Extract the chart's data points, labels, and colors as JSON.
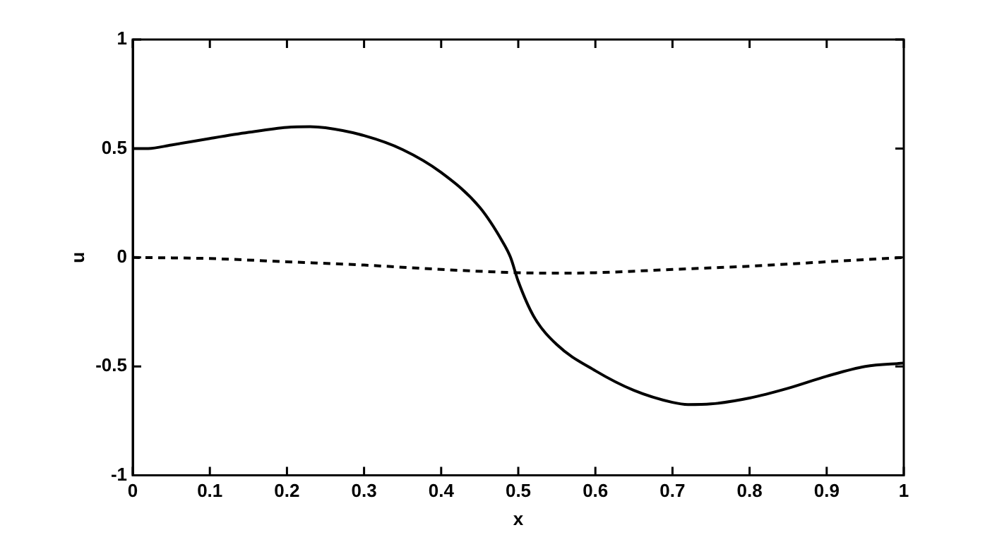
{
  "chart_data": {
    "type": "line",
    "xlabel": "x",
    "ylabel": "u",
    "xlim": [
      0,
      1
    ],
    "xticks": [
      0,
      0.1,
      0.2,
      0.3,
      0.4,
      0.5,
      0.6,
      0.7,
      0.8,
      0.9,
      1
    ],
    "ylim": [
      -1,
      1
    ],
    "yticks": [
      -1,
      -0.5,
      0,
      0.5,
      1
    ],
    "grid": false,
    "legend": false,
    "marker": "none",
    "series": [
      {
        "color": "#000000",
        "line_style": "solid",
        "x": [
          0,
          0.02,
          0.05,
          0.1,
          0.15,
          0.2,
          0.23,
          0.25,
          0.3,
          0.35,
          0.4,
          0.45,
          0.48,
          0.49,
          0.5,
          0.52,
          0.55,
          0.6,
          0.65,
          0.7,
          0.72,
          0.75,
          0.8,
          0.85,
          0.9,
          0.95,
          1
        ],
        "values": [
          0.5,
          0.5,
          0.516,
          0.546,
          0.574,
          0.597,
          0.6,
          0.595,
          0.559,
          0.495,
          0.39,
          0.23,
          0.07,
          0,
          -0.11,
          -0.27,
          -0.4,
          -0.52,
          -0.61,
          -0.665,
          -0.675,
          -0.672,
          -0.645,
          -0.6,
          -0.545,
          -0.5,
          -0.485
        ]
      },
      {
        "color": "#000000",
        "line_style": "dashed",
        "x": [
          0,
          0.1,
          0.2,
          0.3,
          0.4,
          0.5,
          0.55,
          0.6,
          0.7,
          0.8,
          0.9,
          1
        ],
        "values": [
          0,
          -0.005,
          -0.02,
          -0.035,
          -0.055,
          -0.07,
          -0.072,
          -0.07,
          -0.055,
          -0.04,
          -0.02,
          0
        ]
      }
    ]
  }
}
